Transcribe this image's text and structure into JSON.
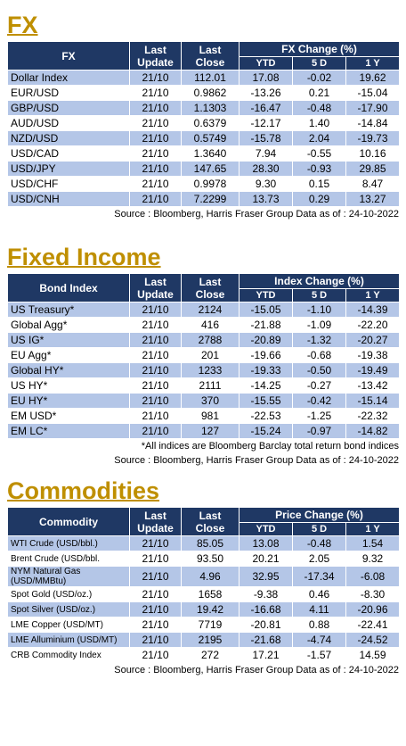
{
  "sections": [
    {
      "title": "FX",
      "table": {
        "header": {
          "name": "FX",
          "last_update": "Last Update",
          "last_close": "Last Close",
          "group": "FX Change (%)",
          "cols": [
            "YTD",
            "5 D",
            "1 Y"
          ]
        },
        "rows": [
          [
            "Dollar Index",
            "21/10",
            "112.01",
            "17.08",
            "-0.02",
            "19.62"
          ],
          [
            "EUR/USD",
            "21/10",
            "0.9862",
            "-13.26",
            "0.21",
            "-15.04"
          ],
          [
            "GBP/USD",
            "21/10",
            "1.1303",
            "-16.47",
            "-0.48",
            "-17.90"
          ],
          [
            "AUD/USD",
            "21/10",
            "0.6379",
            "-12.17",
            "1.40",
            "-14.84"
          ],
          [
            "NZD/USD",
            "21/10",
            "0.5749",
            "-15.78",
            "2.04",
            "-19.73"
          ],
          [
            "USD/CAD",
            "21/10",
            "1.3640",
            "7.94",
            "-0.55",
            "10.16"
          ],
          [
            "USD/JPY",
            "21/10",
            "147.65",
            "28.30",
            "-0.93",
            "29.85"
          ],
          [
            "USD/CHF",
            "21/10",
            "0.9978",
            "9.30",
            "0.15",
            "8.47"
          ],
          [
            "USD/CNH",
            "21/10",
            "7.2299",
            "13.73",
            "0.29",
            "13.27"
          ]
        ]
      },
      "notes": [
        "Source : Bloomberg, Harris Fraser Group Data as of : 24-10-2022"
      ]
    },
    {
      "title": "Fixed Income",
      "table": {
        "header": {
          "name": "Bond Index",
          "last_update": "Last Update",
          "last_close": "Last Close",
          "group": "Index Change (%)",
          "cols": [
            "YTD",
            "5 D",
            "1 Y"
          ]
        },
        "rows": [
          [
            "US Treasury*",
            "21/10",
            "2124",
            "-15.05",
            "-1.10",
            "-14.39"
          ],
          [
            "Global Agg*",
            "21/10",
            "416",
            "-21.88",
            "-1.09",
            "-22.20"
          ],
          [
            "US IG*",
            "21/10",
            "2788",
            "-20.89",
            "-1.32",
            "-20.27"
          ],
          [
            "EU Agg*",
            "21/10",
            "201",
            "-19.66",
            "-0.68",
            "-19.38"
          ],
          [
            "Global HY*",
            "21/10",
            "1233",
            "-19.33",
            "-0.50",
            "-19.49"
          ],
          [
            "US HY*",
            "21/10",
            "2111",
            "-14.25",
            "-0.27",
            "-13.42"
          ],
          [
            "EU HY*",
            "21/10",
            "370",
            "-15.55",
            "-0.42",
            "-15.14"
          ],
          [
            "EM USD*",
            "21/10",
            "981",
            "-22.53",
            "-1.25",
            "-22.32"
          ],
          [
            "EM LC*",
            "21/10",
            "127",
            "-15.24",
            "-0.97",
            "-14.82"
          ]
        ]
      },
      "notes": [
        "*All indices are Bloomberg Barclay total return bond indices",
        "Source : Bloomberg, Harris Fraser Group Data as of : 24-10-2022"
      ]
    },
    {
      "title": "Commodities",
      "table": {
        "header": {
          "name": "Commodity",
          "last_update": "Last Update",
          "last_close": "Last Close",
          "group": "Price Change (%)",
          "cols": [
            "YTD",
            "5 D",
            "1 Y"
          ]
        },
        "rows": [
          [
            "WTI Crude (USD/bbl.)",
            "21/10",
            "85.05",
            "13.08",
            "-0.48",
            "1.54"
          ],
          [
            "Brent Crude (USD/bbl.",
            "21/10",
            "93.50",
            "20.21",
            "2.05",
            "9.32"
          ],
          [
            "NYM Natural Gas (USD/MMBtu)",
            "21/10",
            "4.96",
            "32.95",
            "-17.34",
            "-6.08"
          ],
          [
            "Spot Gold (USD/oz.)",
            "21/10",
            "1658",
            "-9.38",
            "0.46",
            "-8.30"
          ],
          [
            "Spot Silver  (USD/oz.)",
            "21/10",
            "19.42",
            "-16.68",
            "4.11",
            "-20.96"
          ],
          [
            "LME Copper  (USD/MT)",
            "21/10",
            "7719",
            "-20.81",
            "0.88",
            "-22.41"
          ],
          [
            "LME Alluminium (USD/MT)",
            "21/10",
            "2195",
            "-21.68",
            "-4.74",
            "-24.52"
          ],
          [
            "CRB Commodity Index",
            "21/10",
            "272",
            "17.21",
            "-1.57",
            "14.59"
          ]
        ]
      },
      "notes": [
        "Source : Bloomberg, Harris Fraser Group Data as of : 24-10-2022"
      ]
    }
  ]
}
